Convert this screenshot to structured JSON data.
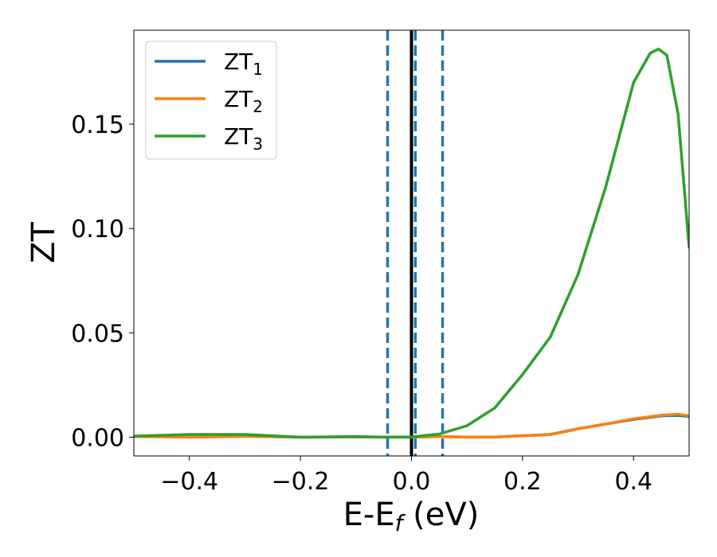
{
  "chart_data": {
    "type": "line",
    "xlabel": "E-E",
    "xlabel_sub": "f",
    "xlabel_unit": " (eV)",
    "ylabel": "ZT",
    "xlim": [
      -0.5,
      0.5
    ],
    "ylim": [
      -0.009,
      0.195
    ],
    "x_ticks": [
      -0.4,
      -0.2,
      0.0,
      0.2,
      0.4
    ],
    "x_tick_labels": [
      "−0.4",
      "−0.2",
      "0.0",
      "0.2",
      "0.4"
    ],
    "y_ticks": [
      0.0,
      0.05,
      0.1,
      0.15
    ],
    "y_tick_labels": [
      "0.00",
      "0.05",
      "0.10",
      "0.15"
    ],
    "grid": false,
    "legend_position": "top-left",
    "series": [
      {
        "name": "ZT",
        "sub": "1",
        "color": "#1f77b4",
        "x": [
          -0.5,
          -0.4,
          -0.3,
          -0.2,
          -0.1,
          0.0,
          0.05,
          0.1,
          0.15,
          0.2,
          0.25,
          0.3,
          0.35,
          0.4,
          0.45,
          0.48,
          0.5
        ],
        "y": [
          0.0005,
          0.0,
          0.0004,
          0.0,
          0.0001,
          0.0,
          0.0003,
          0.0,
          0.0,
          0.0007,
          0.0013,
          0.004,
          0.0063,
          0.0085,
          0.0102,
          0.0104,
          0.0099
        ]
      },
      {
        "name": "ZT",
        "sub": "2",
        "color": "#ff7f0e",
        "x": [
          -0.5,
          -0.4,
          -0.3,
          -0.2,
          -0.1,
          0.0,
          0.05,
          0.1,
          0.15,
          0.2,
          0.25,
          0.3,
          0.35,
          0.4,
          0.45,
          0.48,
          0.5
        ],
        "y": [
          0.0003,
          0.0,
          0.0004,
          0.0,
          0.0001,
          0.0,
          0.0003,
          0.0,
          0.0,
          0.0007,
          0.0012,
          0.004,
          0.0063,
          0.0088,
          0.0105,
          0.011,
          0.0102
        ]
      },
      {
        "name": "ZT",
        "sub": "3",
        "color": "#2ca02c",
        "x": [
          -0.5,
          -0.4,
          -0.3,
          -0.25,
          -0.2,
          -0.1,
          -0.05,
          0.0,
          0.05,
          0.1,
          0.15,
          0.2,
          0.25,
          0.3,
          0.35,
          0.4,
          0.43,
          0.445,
          0.46,
          0.48,
          0.5
        ],
        "y": [
          0.0005,
          0.0013,
          0.0013,
          0.0006,
          0.0,
          0.0003,
          0.0,
          0.0001,
          0.0015,
          0.0055,
          0.014,
          0.03,
          0.048,
          0.078,
          0.12,
          0.17,
          0.184,
          0.186,
          0.183,
          0.155,
          0.091
        ]
      }
    ],
    "vertical_lines": [
      {
        "x": 0.0,
        "style": "solid",
        "color": "#000000"
      },
      {
        "x": -0.043,
        "style": "dashed",
        "color": "#1f77b4"
      },
      {
        "x": 0.007,
        "style": "dashed",
        "color": "#1f77b4"
      },
      {
        "x": 0.056,
        "style": "dashed",
        "color": "#1f77b4"
      }
    ]
  }
}
